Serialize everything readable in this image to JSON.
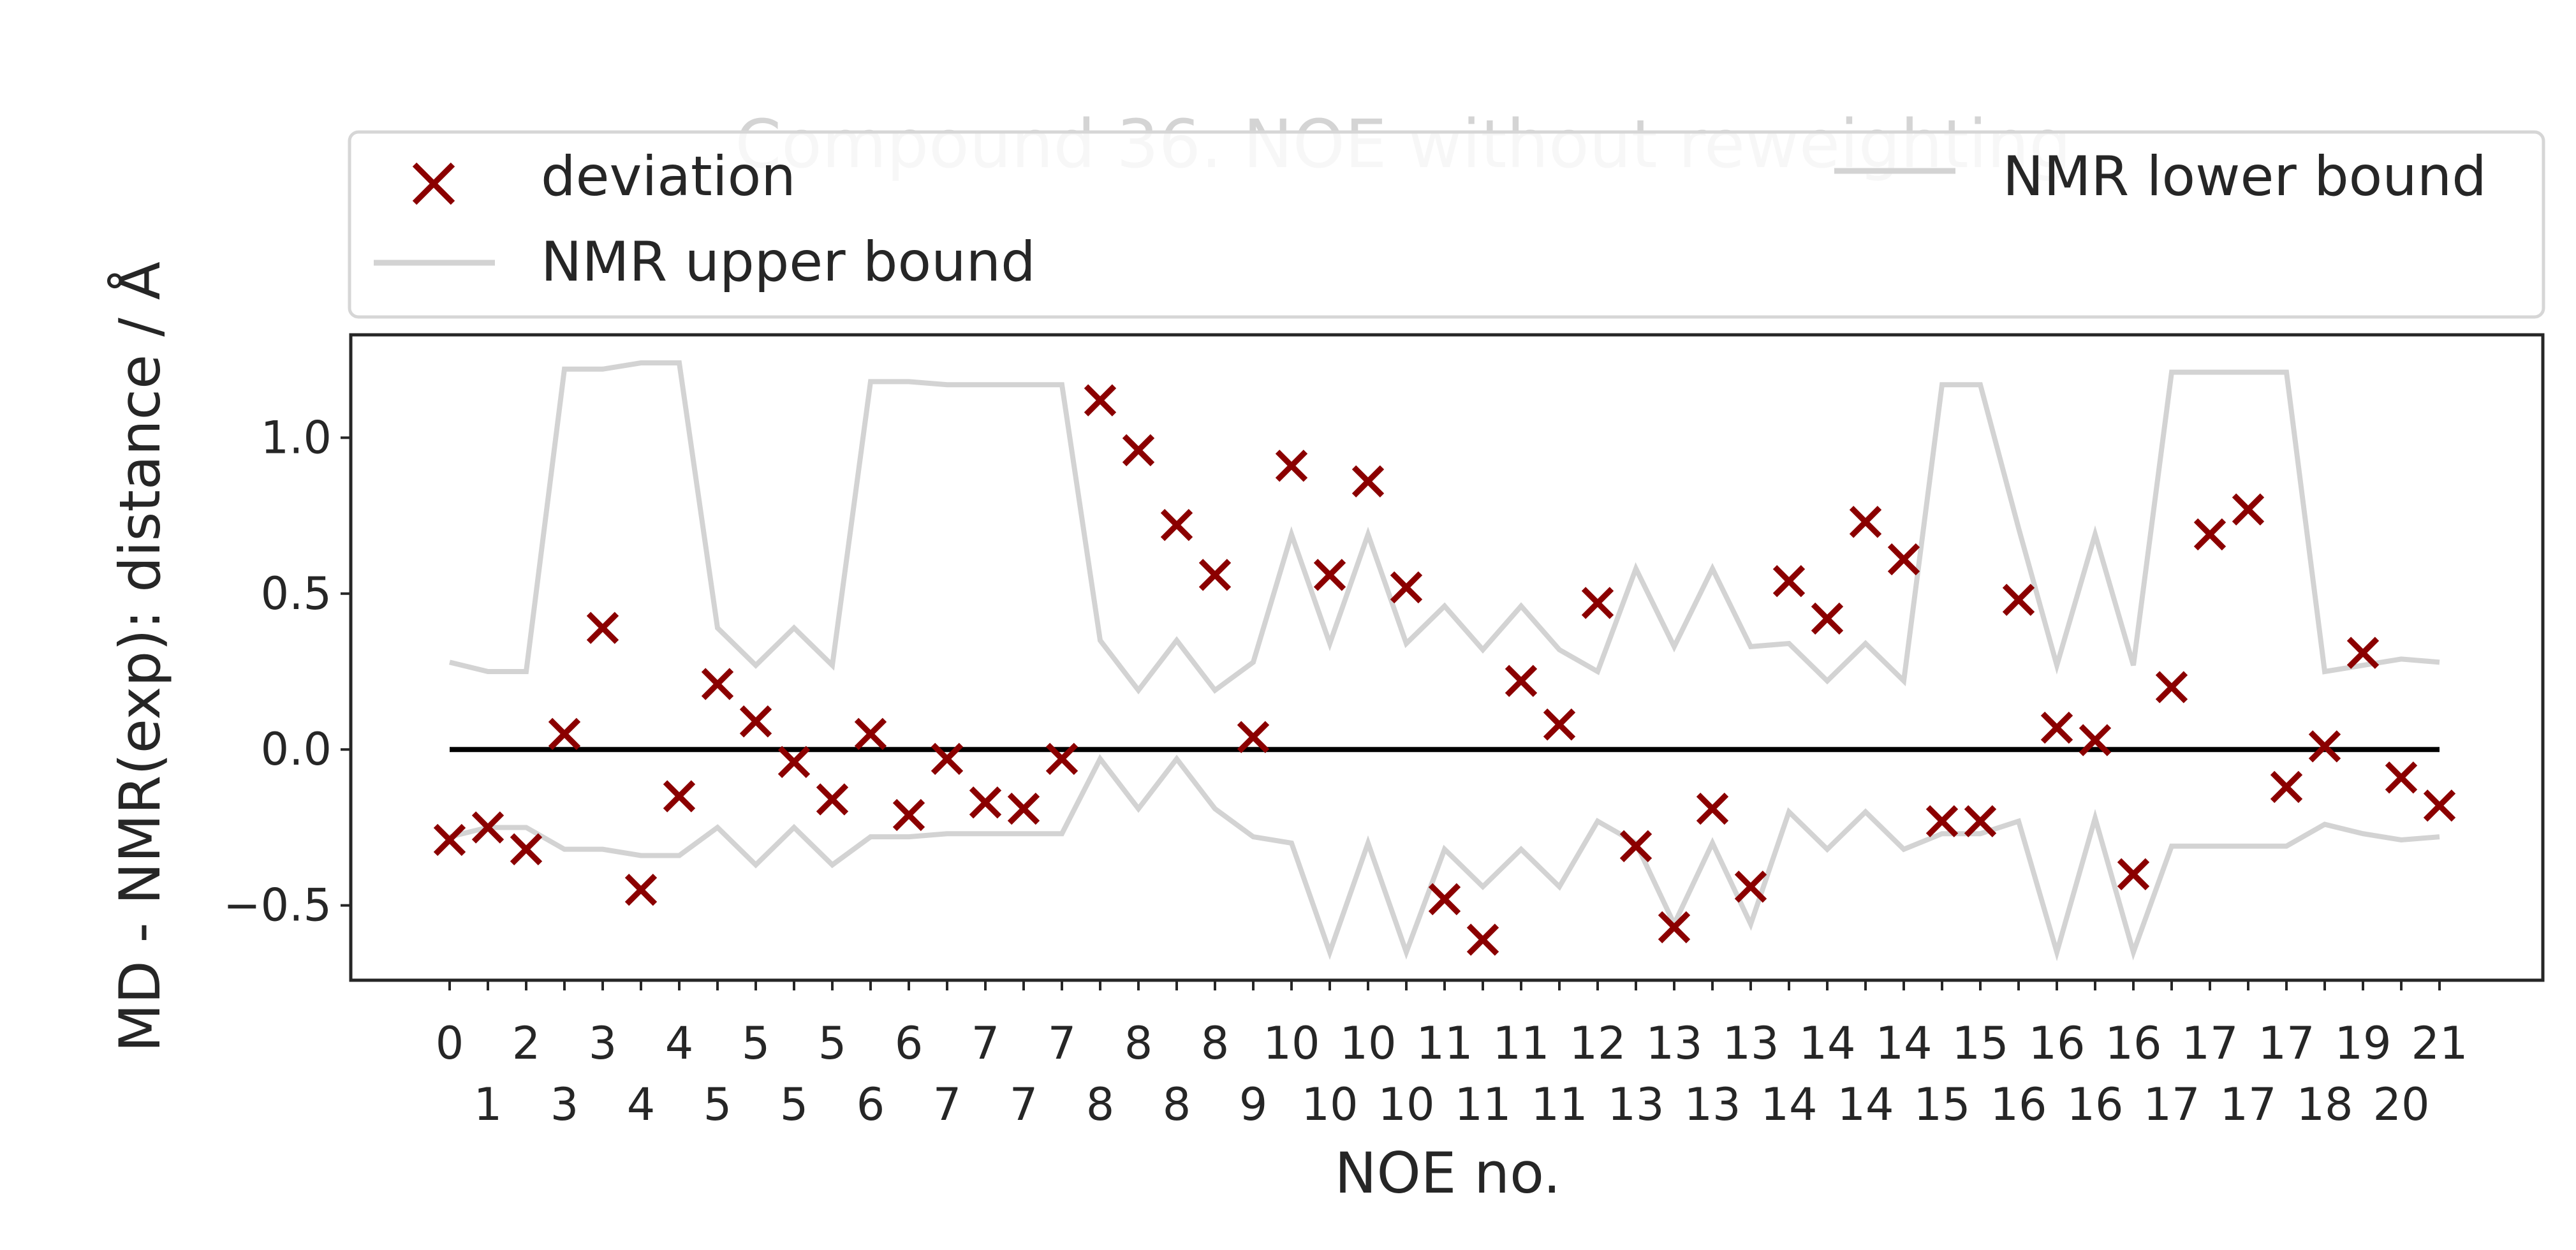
{
  "chart_data": {
    "type": "scatter",
    "title": "Compound 36. NOE without reweighting",
    "xlabel": "NOE no.",
    "ylabel": "MD - NMR(exp): distance / Å",
    "ylim": [
      -0.74,
      1.33
    ],
    "yticks": [
      {
        "value": 1.0,
        "label": "1.0"
      },
      {
        "value": 0.5,
        "label": "0.5"
      },
      {
        "value": 0.0,
        "label": "0.0"
      },
      {
        "value": -0.5,
        "label": "−0.5"
      }
    ],
    "xtick_labels_top": [
      "0",
      "2",
      "3",
      "4",
      "5",
      "5",
      "6",
      "7",
      "7",
      "8",
      "8",
      "10",
      "10",
      "11",
      "11",
      "12",
      "13",
      "13",
      "14",
      "14",
      "15",
      "16",
      "16",
      "17",
      "17",
      "19",
      "21"
    ],
    "xtick_labels_bottom": [
      "1",
      "3",
      "4",
      "5",
      "5",
      "6",
      "7",
      "7",
      "8",
      "8",
      "9",
      "10",
      "10",
      "11",
      "11",
      "13",
      "13",
      "14",
      "14",
      "15",
      "16",
      "16",
      "17",
      "17",
      "18",
      "20"
    ],
    "legend": {
      "placement": "top",
      "entries": [
        {
          "label": "deviation",
          "marker": "x",
          "color": "#8b0000"
        },
        {
          "label": "NMR lower bound",
          "marker": "line",
          "color": "#d3d3d3"
        },
        {
          "label": "NMR upper bound",
          "marker": "line",
          "color": "#d3d3d3"
        }
      ]
    },
    "series": [
      {
        "name": "deviation",
        "marker": "x",
        "color": "#8b0000",
        "values": [
          -0.29,
          -0.25,
          -0.32,
          0.05,
          0.39,
          -0.45,
          -0.15,
          0.21,
          0.09,
          -0.04,
          -0.16,
          0.05,
          -0.21,
          -0.03,
          -0.17,
          -0.19,
          -0.03,
          1.12,
          0.96,
          0.72,
          0.56,
          0.04,
          0.91,
          0.56,
          0.86,
          0.52,
          -0.48,
          -0.61,
          0.22,
          0.08,
          0.47,
          -0.31,
          -0.57,
          -0.19,
          -0.44,
          0.54,
          0.42,
          0.73,
          0.61,
          -0.23,
          -0.23,
          0.48,
          0.07,
          0.03,
          -0.4,
          0.2,
          0.69,
          0.77,
          -0.12,
          0.01,
          0.31,
          -0.09,
          -0.18
        ]
      },
      {
        "name": "NMR upper bound",
        "line": true,
        "color": "#d3d3d3",
        "values": [
          0.28,
          0.25,
          0.25,
          1.22,
          1.22,
          1.24,
          1.24,
          0.39,
          0.27,
          0.39,
          0.27,
          1.18,
          1.18,
          1.17,
          1.17,
          1.17,
          1.17,
          0.35,
          0.19,
          0.35,
          0.19,
          0.28,
          0.69,
          0.34,
          0.69,
          0.34,
          0.46,
          0.32,
          0.46,
          0.32,
          0.25,
          0.58,
          0.33,
          0.58,
          0.33,
          0.34,
          0.22,
          0.34,
          0.22,
          1.17,
          1.17,
          0.71,
          0.27,
          0.69,
          0.27,
          1.21,
          1.21,
          1.21,
          1.21,
          0.25,
          0.27,
          0.29,
          0.28
        ]
      },
      {
        "name": "NMR lower bound",
        "line": true,
        "color": "#d3d3d3",
        "values": [
          -0.28,
          -0.25,
          -0.25,
          -0.32,
          -0.32,
          -0.34,
          -0.34,
          -0.25,
          -0.37,
          -0.25,
          -0.37,
          -0.28,
          -0.28,
          -0.27,
          -0.27,
          -0.27,
          -0.27,
          -0.03,
          -0.19,
          -0.03,
          -0.19,
          -0.28,
          -0.3,
          -0.65,
          -0.3,
          -0.65,
          -0.32,
          -0.44,
          -0.32,
          -0.44,
          -0.23,
          -0.3,
          -0.56,
          -0.3,
          -0.56,
          -0.2,
          -0.32,
          -0.2,
          -0.32,
          -0.27,
          -0.27,
          -0.23,
          -0.65,
          -0.22,
          -0.65,
          -0.31,
          -0.31,
          -0.31,
          -0.31,
          -0.24,
          -0.27,
          -0.29,
          -0.28
        ]
      }
    ],
    "reference_line": {
      "y": 0.0,
      "color": "#000000"
    }
  }
}
